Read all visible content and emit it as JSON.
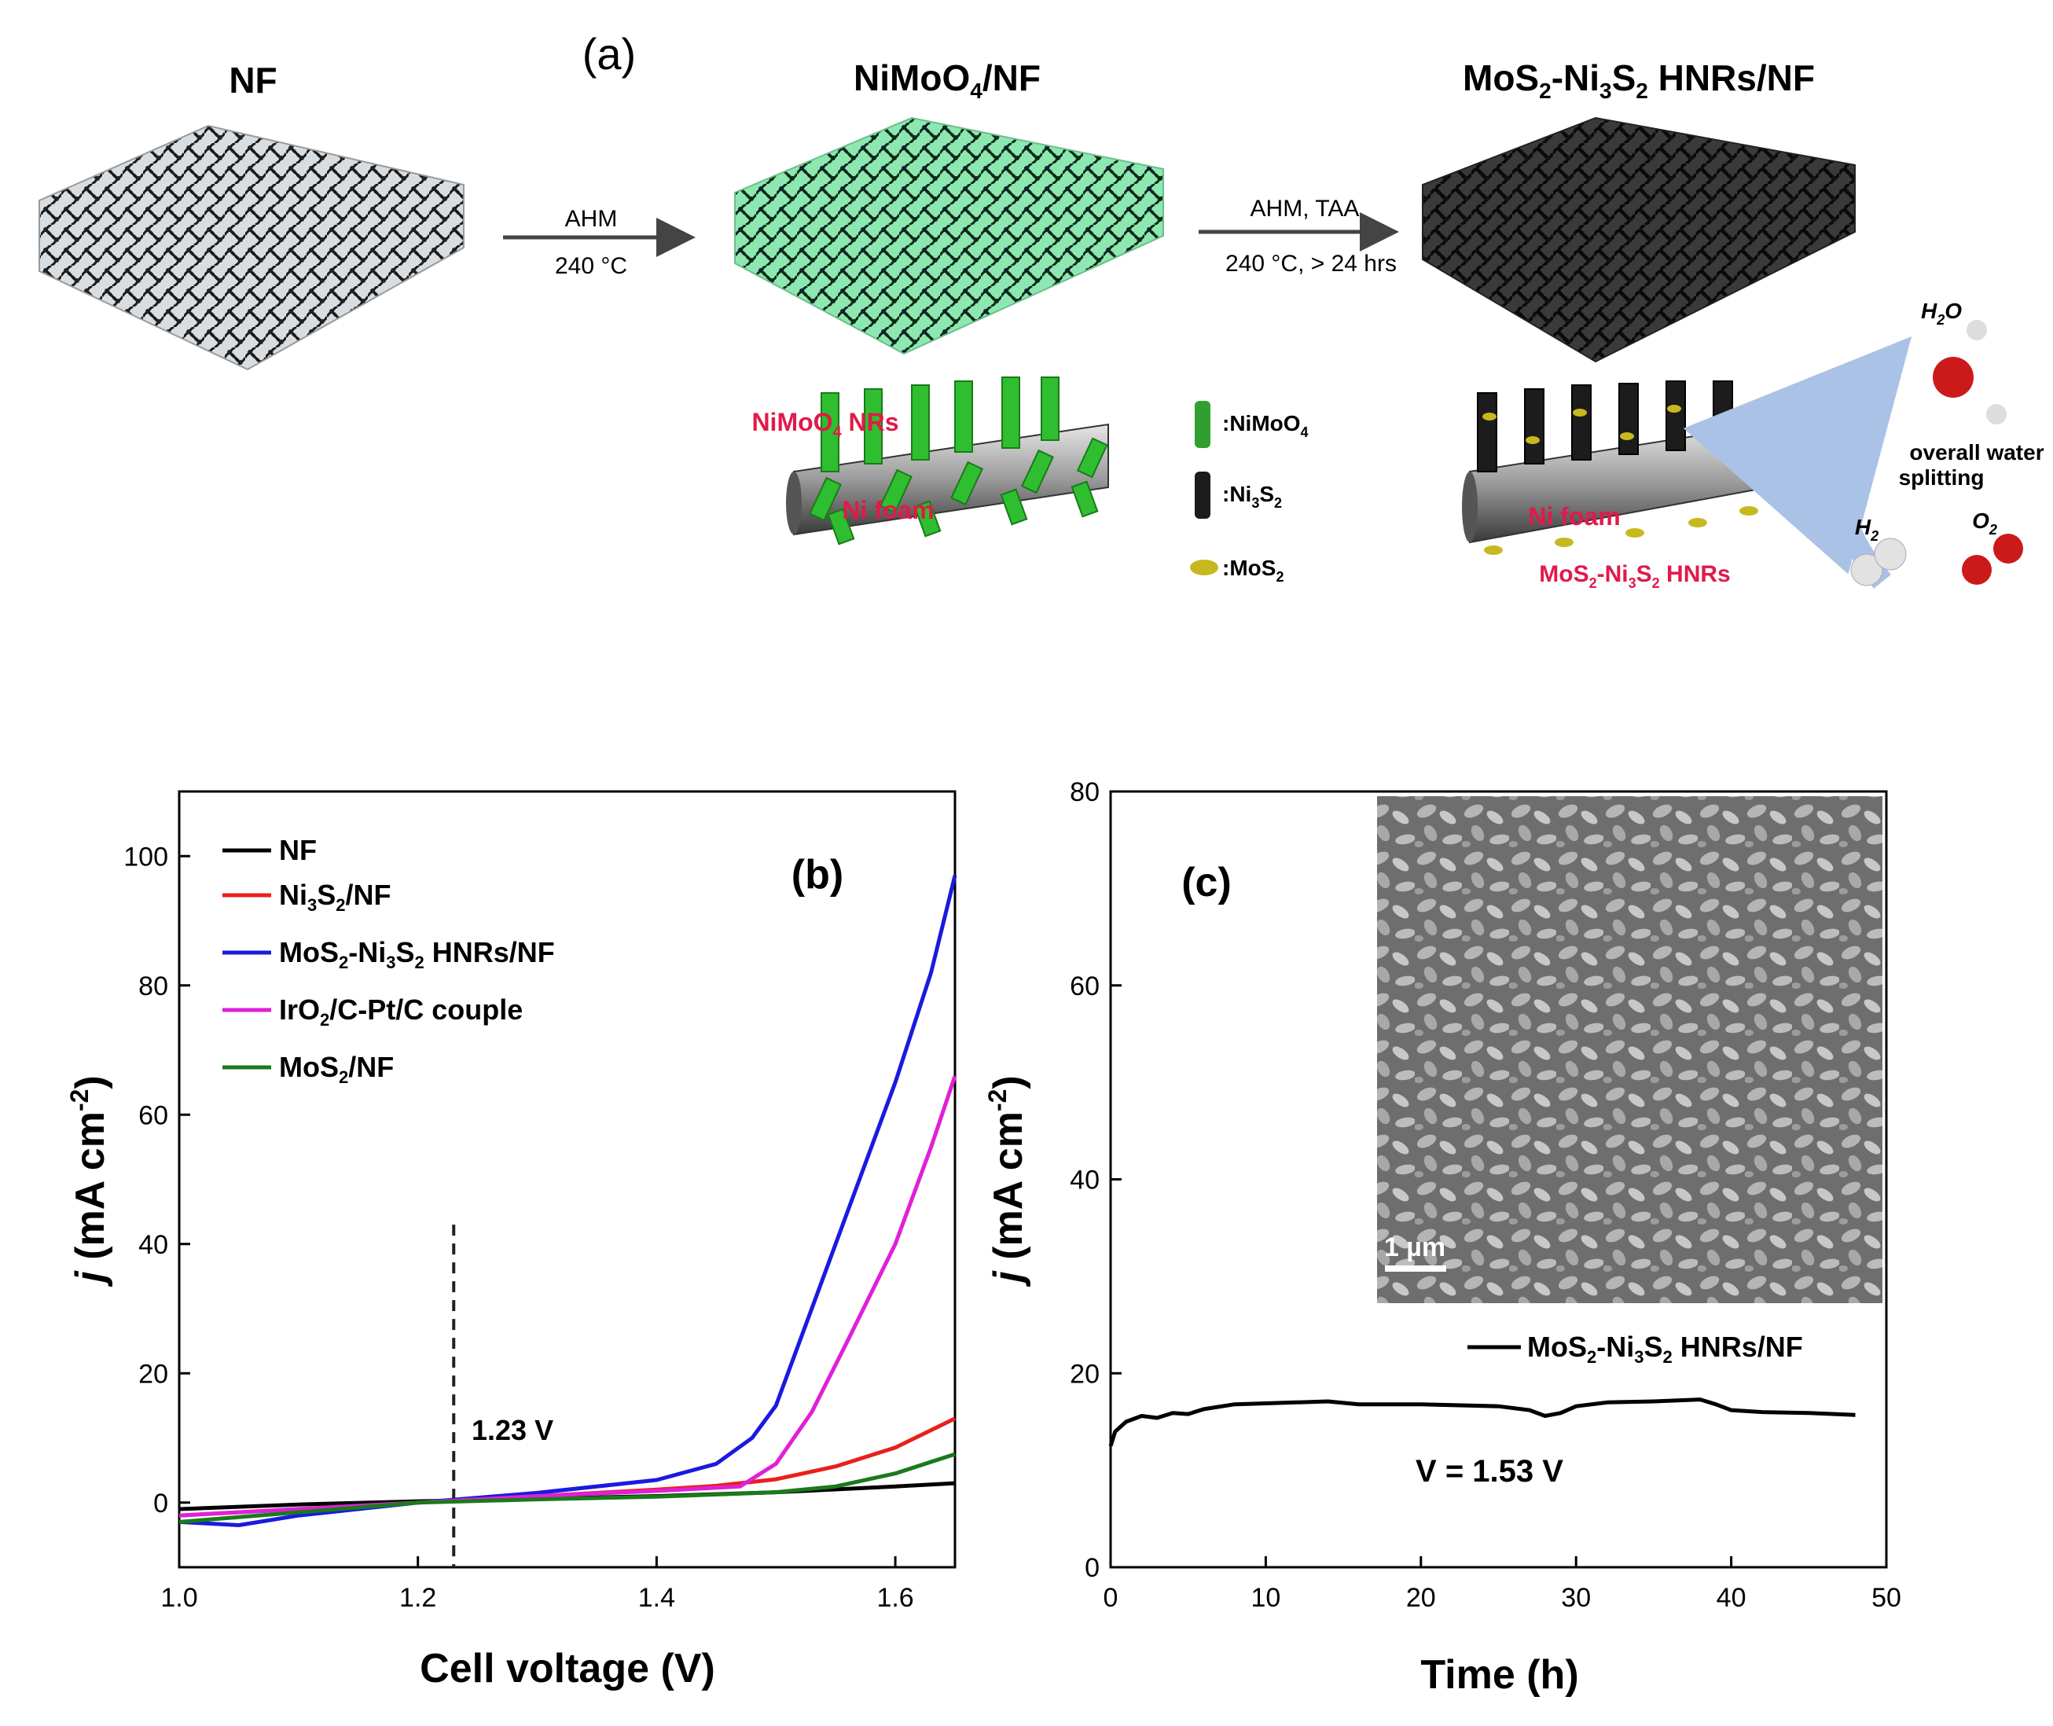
{
  "panel_a": {
    "label": "(a)",
    "step1": {
      "title": "NF"
    },
    "step2": {
      "title": "NiMoO",
      "title_sub": "4",
      "title_end": "/NF"
    },
    "step3": {
      "title": "MoS",
      "title_sub1": "2",
      "title_mid": "-Ni",
      "title_sub2": "3",
      "title_s": "S",
      "title_sub3": "2",
      "title_end": " HNRs/NF"
    },
    "arrow1": {
      "top": "AHM",
      "bottom": "240 °C"
    },
    "arrow2": {
      "top": "AHM, TAA",
      "bottom": "240 °C, > 24 hrs"
    },
    "nimoo4_nrs_label": "NiMoO",
    "nimoo4_nrs_sub": "4",
    "nimoo4_nrs_end": " NRs",
    "ni_foam_label": "Ni foam",
    "legend": [
      {
        "label": ":NiMoO",
        "sub": "4",
        "color": "#2fa02f"
      },
      {
        "label": ":Ni",
        "sub": "3",
        "label2": "S",
        "sub2": "2",
        "color": "#1c1c1c"
      },
      {
        "label": ":MoS",
        "sub": "2",
        "color": "#c8b820"
      }
    ],
    "hnrs_label": "MoS",
    "hnrs_sub1": "2",
    "hnrs_mid": "-Ni",
    "hnrs_sub2": "3",
    "hnrs_s": "S",
    "hnrs_sub3": "2",
    "hnrs_end": " HNRs",
    "ni_foam_label2": "Ni foam",
    "water_label": "overall water",
    "water_label2": "splitting",
    "h2o": "H",
    "h2o_sub": "2",
    "h2o_end": "O",
    "h2": "H",
    "h2_sub": "2",
    "o2": "O",
    "o2_sub": "2"
  },
  "chart_data": [
    {
      "type": "line",
      "panel_label": "(b)",
      "xlabel": "Cell voltage (V)",
      "ylabel": "j (mA cm-2)",
      "xlim": [
        1.0,
        1.65
      ],
      "ylim": [
        -10,
        110
      ],
      "xticks": [
        "1.0",
        "1.2",
        "1.4",
        "1.6"
      ],
      "yticks": [
        "0",
        "20",
        "40",
        "60",
        "80",
        "100"
      ],
      "annotation": "1.23 V",
      "annotation_x": 1.23,
      "series": [
        {
          "name": "NF",
          "color": "#000000",
          "x": [
            1.0,
            1.1,
            1.2,
            1.3,
            1.4,
            1.5,
            1.6,
            1.65
          ],
          "y": [
            -1,
            -0.3,
            0.2,
            0.6,
            1.0,
            1.6,
            2.5,
            3
          ]
        },
        {
          "name": "Ni3S2/NF",
          "color": "#e8201a",
          "x": [
            1.0,
            1.1,
            1.2,
            1.3,
            1.4,
            1.45,
            1.5,
            1.55,
            1.6,
            1.65
          ],
          "y": [
            -2,
            -1,
            0,
            1,
            2,
            2.6,
            3.6,
            5.6,
            8.5,
            13
          ]
        },
        {
          "name": "MoS2-Ni3S2 HNRs/NF",
          "color": "#1a1ae0",
          "x": [
            1.0,
            1.05,
            1.1,
            1.2,
            1.3,
            1.4,
            1.45,
            1.48,
            1.5,
            1.53,
            1.56,
            1.6,
            1.63,
            1.65
          ],
          "y": [
            -3,
            -3.5,
            -2,
            0,
            1.5,
            3.5,
            6,
            10,
            15,
            30,
            45,
            65,
            82,
            97
          ]
        },
        {
          "name": "IrO2/C-Pt/C couple",
          "color": "#e020d8",
          "x": [
            1.0,
            1.1,
            1.2,
            1.3,
            1.4,
            1.47,
            1.5,
            1.53,
            1.56,
            1.6,
            1.63,
            1.65
          ],
          "y": [
            -2,
            -1,
            0,
            1,
            1.8,
            2.5,
            6,
            14,
            25,
            40,
            55,
            66
          ]
        },
        {
          "name": "MoS2/NF",
          "color": "#1a7a1a",
          "x": [
            1.0,
            1.1,
            1.2,
            1.3,
            1.4,
            1.5,
            1.55,
            1.6,
            1.65
          ],
          "y": [
            -3,
            -1.5,
            0,
            0.5,
            0.9,
            1.6,
            2.5,
            4.5,
            7.5
          ]
        }
      ]
    },
    {
      "type": "line",
      "panel_label": "(c)",
      "xlabel": "Time (h)",
      "ylabel": "j (mA cm-2)",
      "xlim": [
        0,
        50
      ],
      "ylim": [
        0,
        80
      ],
      "xticks": [
        "0",
        "10",
        "20",
        "30",
        "40",
        "50"
      ],
      "yticks": [
        "0",
        "20",
        "40",
        "60",
        "80"
      ],
      "annotation": "V = 1.53 V",
      "inset_scale_label": "1 µm",
      "series": [
        {
          "name": "MoS2-Ni3S2 HNRs/NF",
          "color": "#000000",
          "x": [
            0,
            0.3,
            1,
            2,
            3,
            4,
            5,
            6,
            8,
            10,
            14,
            16,
            20,
            25,
            27,
            28,
            29,
            30,
            32,
            35,
            38,
            39,
            40,
            42,
            45,
            48
          ],
          "y": [
            12.5,
            14,
            15,
            15.6,
            15.4,
            15.9,
            15.8,
            16.3,
            16.8,
            16.9,
            17.1,
            16.8,
            16.8,
            16.6,
            16.2,
            15.6,
            15.9,
            16.6,
            17,
            17.1,
            17.3,
            16.8,
            16.2,
            16,
            15.9,
            15.7
          ]
        }
      ]
    }
  ],
  "chart_b_legend_labels": {
    "nf": "NF",
    "ni3s2": "Ni",
    "ni3s2_sub": "3",
    "ni3s2_s": "S",
    "ni3s2_sub2": "2",
    "ni3s2_end": "/NF",
    "hnrs": "MoS",
    "hnrs_sub1": "2",
    "hnrs_mid": "-Ni",
    "hnrs_sub2": "3",
    "hnrs_s": "S",
    "hnrs_sub3": "2",
    "hnrs_end": " HNRs/NF",
    "iro2": "IrO",
    "iro2_sub": "2",
    "iro2_end": "/C-Pt/C couple",
    "mos2": "MoS",
    "mos2_sub": "2",
    "mos2_end": "/NF"
  },
  "chart_c_legend_labels": {
    "hnrs": "MoS",
    "hnrs_sub1": "2",
    "hnrs_mid": "-Ni",
    "hnrs_sub2": "3",
    "hnrs_s": "S",
    "hnrs_sub3": "2",
    "hnrs_end": " HNRs/NF"
  },
  "ylabel_parts": {
    "j": "j",
    "open": " (mA cm",
    "sup": "-2",
    "close": ")"
  }
}
